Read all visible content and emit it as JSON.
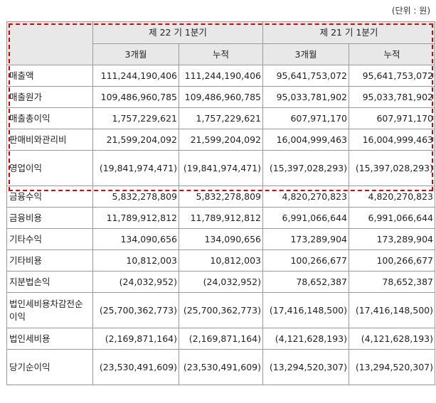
{
  "unit_note": "(단위 : 원)",
  "header": {
    "period_current": "제 22 기 1분기",
    "period_prior": "제 21 기 1분기",
    "three_month": "3개월",
    "cumulative": "누적"
  },
  "rows": [
    {
      "label": "매출액",
      "c1": "111,244,190,406",
      "c2": "111,244,190,406",
      "c3": "95,641,753,072",
      "c4": "95,641,753,072"
    },
    {
      "label": "매출원가",
      "c1": "109,486,960,785",
      "c2": "109,486,960,785",
      "c3": "95,033,781,902",
      "c4": "95,033,781,902"
    },
    {
      "label": "매출총이익",
      "c1": "1,757,229,621",
      "c2": "1,757,229,621",
      "c3": "607,971,170",
      "c4": "607,971,170"
    },
    {
      "label": "판매비와관리비",
      "c1": "21,599,204,092",
      "c2": "21,599,204,092",
      "c3": "16,004,999,463",
      "c4": "16,004,999,463"
    },
    {
      "label": "영업이익",
      "c1": "(19,841,974,471)",
      "c2": "(19,841,974,471)",
      "c3": "(15,397,028,293)",
      "c4": "(15,397,028,293)"
    },
    {
      "label": "금융수익",
      "c1": "5,832,278,809",
      "c2": "5,832,278,809",
      "c3": "4,820,270,823",
      "c4": "4,820,270,823"
    },
    {
      "label": "금융비용",
      "c1": "11,789,912,812",
      "c2": "11,789,912,812",
      "c3": "6,991,066,644",
      "c4": "6,991,066,644"
    },
    {
      "label": "기타수익",
      "c1": "134,090,656",
      "c2": "134,090,656",
      "c3": "173,289,904",
      "c4": "173,289,904"
    },
    {
      "label": "기타비용",
      "c1": "10,812,003",
      "c2": "10,812,003",
      "c3": "100,266,677",
      "c4": "100,266,677"
    },
    {
      "label": "지분법손익",
      "c1": "(24,032,952)",
      "c2": "(24,032,952)",
      "c3": "78,652,387",
      "c4": "78,652,387"
    },
    {
      "label": "법인세비용차감전순이익",
      "c1": "(25,700,362,773)",
      "c2": "(25,700,362,773)",
      "c3": "(17,416,148,500)",
      "c4": "(17,416,148,500)"
    },
    {
      "label": "법인세비용",
      "c1": "(2,169,871,164)",
      "c2": "(2,169,871,164)",
      "c3": "(4,121,628,193)",
      "c4": "(4,121,628,193)"
    },
    {
      "label": "당기순이익",
      "c1": "(23,530,491,609)",
      "c2": "(23,530,491,609)",
      "c3": "(13,294,520,307)",
      "c4": "(13,294,520,307)"
    }
  ]
}
